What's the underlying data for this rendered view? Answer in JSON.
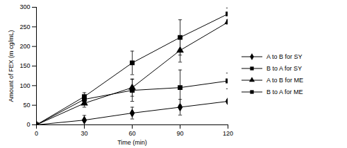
{
  "chart_data": {
    "type": "line",
    "x_label": "Time (min)",
    "y_label": "Amount of FEX (m cg/mL)",
    "x": [
      0,
      30,
      60,
      90,
      120
    ],
    "xlim": [
      0,
      120
    ],
    "xticks": [
      0,
      30,
      60,
      90,
      120
    ],
    "ylim": [
      0,
      300
    ],
    "yticks": [
      0,
      50,
      100,
      150,
      200,
      250,
      300
    ],
    "grid": false,
    "legend": "right",
    "series": [
      {
        "name": "A to B for SY",
        "color": "#000000",
        "marker": "diamond",
        "line_style": "solid",
        "values": [
          0,
          12,
          30,
          45,
          60
        ],
        "errors": [
          0,
          12,
          15,
          20,
          5
        ]
      },
      {
        "name": "B to A for SY",
        "color": "#000000",
        "marker": "square",
        "line_style": "solid",
        "values": [
          0,
          65,
          88,
          95,
          112
        ],
        "errors": [
          0,
          8,
          28,
          45,
          20
        ]
      },
      {
        "name": "A to B for ME",
        "color": "#000000",
        "marker": "triangle",
        "line_style": "solid",
        "values": [
          0,
          55,
          95,
          190,
          262
        ],
        "errors": [
          0,
          10,
          22,
          30,
          5
        ]
      },
      {
        "name": "B to A for ME",
        "color": "#000000",
        "marker": "square",
        "line_style": "solid",
        "values": [
          0,
          72,
          158,
          223,
          283
        ],
        "errors": [
          0,
          10,
          30,
          45,
          15
        ]
      }
    ]
  }
}
